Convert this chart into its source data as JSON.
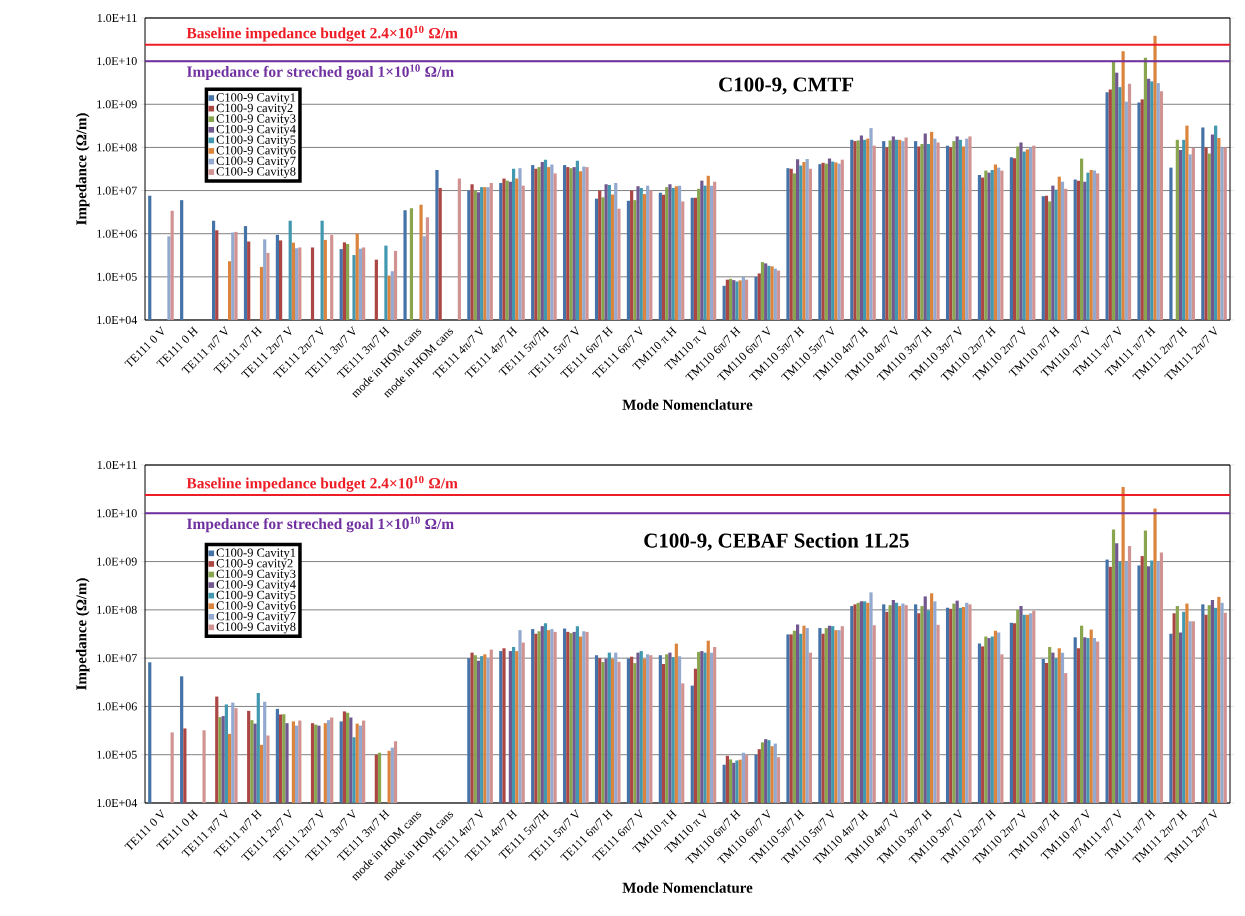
{
  "chart_data": [
    {
      "type": "bar",
      "title": "C100-9, CMTF",
      "xlabel": "Mode Nomenclature",
      "ylabel": "Impedance (Ω/m)",
      "log": true,
      "grid": "y",
      "legend": "top left",
      "categories": [
        "TE111 0 V",
        "TE111 0 H",
        "TE111 π/7 V",
        "TE111 π/7 H",
        "TE111 2π/7 V",
        "TE111 2π/7 V",
        "TE111 3π/7 V",
        "TE111 3π/7 H",
        "mode in HOM cans",
        "mode in HOM cans",
        "TE111 4π/7 V",
        "TE111 4π/7 H",
        "TE111 5π/7H",
        "TE111 5π/7 V",
        "TE111 6π/7 H",
        "TE111 6π/7 V",
        "TM110 π H",
        "TM110 π V",
        "TM110 6π/7 H",
        "TM110 6π/7 V",
        "TM110 5π/7 H",
        "TM110 5π/7 V",
        "TM110 4π/7 H",
        "TM110 4π/7 V",
        "TM110 3π/7 H",
        "TM110 3π/7 V",
        "TM110 2π/7 H",
        "TM110 2π/7 V",
        "TM110 π/7 H",
        "TM110 π/7 V",
        "TM111 π/7 V",
        "TM111 π/7 H",
        "TM111 2π/7 H",
        "TM111 2π/7 V"
      ],
      "ylim": [
        10000,
        100000000000
      ],
      "yticks": [
        {
          "value": 10000,
          "label": "1.0E+04"
        },
        {
          "value": 100000,
          "label": "1.0E+05"
        },
        {
          "value": 1000000,
          "label": "1.0E+06"
        },
        {
          "value": 10000000,
          "label": "1.0E+07"
        },
        {
          "value": 100000000,
          "label": "1.0E+08"
        },
        {
          "value": 1000000000,
          "label": "1.0E+09"
        },
        {
          "value": 10000000000,
          "label": "1.0E+10"
        },
        {
          "value": 100000000000,
          "label": "1.0E+11"
        }
      ],
      "ref_lines": [
        {
          "axis": "y",
          "value": 24000000000,
          "label": "Baseline impedance budget 2.4×10$^{10}$ Ω/m",
          "color": "#ee1c25"
        },
        {
          "axis": "y",
          "value": 10000000000,
          "label": "Impedance for streched goal 1×10$^{10}$ Ω/m",
          "color": "#7030a0"
        }
      ],
      "series": [
        {
          "name": "C100-9 Cavity1",
          "color": "#4572a7",
          "values": [
            7600000.0,
            6000000.0,
            2000000.0,
            1500000.0,
            940000.0,
            null,
            440000.0,
            null,
            3500000.0,
            30000000.0,
            10000000.0,
            15000000.0,
            39000000.0,
            39000000.0,
            6500000.0,
            5800000.0,
            8900000.0,
            6800000.0,
            62000.0,
            100000.0,
            33000000.0,
            41000000.0,
            150000000.0,
            140000000.0,
            140000000.0,
            110000000.0,
            23000000.0,
            59000000.0,
            7400000.0,
            18000000.0,
            1900000000.0,
            1100000000.0,
            34000000.0,
            290000000.0
          ]
        },
        {
          "name": "C100-9 cavity2",
          "color": "#aa4643",
          "values": [
            null,
            null,
            1200000.0,
            660000.0,
            700000.0,
            480000.0,
            630000.0,
            250000.0,
            null,
            11500000.0,
            14000000.0,
            19000000.0,
            32000000.0,
            35000000.0,
            10000000.0,
            10000000.0,
            8000000.0,
            6800000.0,
            86000.0,
            120000.0,
            32000000.0,
            44000000.0,
            140000000.0,
            100000000.0,
            105000000.0,
            100000000.0,
            20000000.0,
            56000000.0,
            7600000.0,
            17000000.0,
            2200000000.0,
            1300000000.0,
            null,
            100000000.0
          ]
        },
        {
          "name": "C100-9 Cavity3",
          "color": "#89a54e",
          "values": [
            null,
            null,
            null,
            null,
            null,
            null,
            580000.0,
            null,
            3900000.0,
            null,
            10000000.0,
            17000000.0,
            35000000.0,
            33000000.0,
            7000000.0,
            6000000.0,
            12000000.0,
            11000000.0,
            90000.0,
            220000.0,
            25000000.0,
            42000000.0,
            145000000.0,
            145000000.0,
            120000000.0,
            140000000.0,
            29000000.0,
            105000000.0,
            5600000.0,
            55000000.0,
            9700000000.0,
            12000000000.0,
            150000000.0,
            72000000.0
          ]
        },
        {
          "name": "C100-9 Cavity4",
          "color": "#71588f",
          "values": [
            null,
            null,
            null,
            null,
            null,
            null,
            null,
            null,
            null,
            null,
            9100000.0,
            16000000.0,
            46000000.0,
            35000000.0,
            14000000.0,
            12600000.0,
            14000000.0,
            17000000.0,
            84000.0,
            205000.0,
            53000000.0,
            55000000.0,
            190000000.0,
            180000000.0,
            210000000.0,
            180000000.0,
            26000000.0,
            130000000.0,
            13000000.0,
            16000000.0,
            5400000000.0,
            3900000000.0,
            87000000.0,
            200000000.0
          ]
        },
        {
          "name": "C100-9 Cavity5",
          "color": "#4198af",
          "values": [
            null,
            null,
            null,
            null,
            2000000.0,
            2000000.0,
            320000.0,
            530000.0,
            null,
            null,
            12000000.0,
            32000000.0,
            52000000.0,
            49000000.0,
            13500000.0,
            11500000.0,
            11500000.0,
            13000000.0,
            78000.0,
            180000.0,
            38000000.0,
            47000000.0,
            150000000.0,
            150000000.0,
            120000000.0,
            150000000.0,
            30000000.0,
            80000000.0,
            10500000.0,
            26000000.0,
            2500000000.0,
            3400000000.0,
            150000000.0,
            320000000.0
          ]
        },
        {
          "name": "C100-9 Cavity6",
          "color": "#db843d",
          "values": [
            null,
            null,
            230000.0,
            170000.0,
            620000.0,
            720000.0,
            1000000.0,
            107000.0,
            4700000.0,
            null,
            12000000.0,
            19000000.0,
            35000000.0,
            28000000.0,
            8100000.0,
            8300000.0,
            12600000.0,
            22000000.0,
            83000.0,
            175000.0,
            46000000.0,
            45000000.0,
            160000000.0,
            150000000.0,
            230000000.0,
            105000000.0,
            40000000.0,
            90000000.0,
            21000000.0,
            30000000.0,
            17000000000.0,
            39000000000.0,
            320000000.0,
            165000000.0
          ]
        },
        {
          "name": "C100-9 Cavity7",
          "color": "#93a9cf",
          "values": [
            870000.0,
            null,
            1070000.0,
            740000.0,
            460000.0,
            null,
            450000.0,
            135000.0,
            870000.0,
            null,
            12000000.0,
            33000000.0,
            40000000.0,
            36000000.0,
            15000000.0,
            13000000.0,
            13000000.0,
            13000000.0,
            100000.0,
            155000.0,
            54000000.0,
            42000000.0,
            280000000.0,
            140000000.0,
            160000000.0,
            160000000.0,
            34000000.0,
            100000000.0,
            16000000.0,
            29000000.0,
            1150000000.0,
            3100000000.0,
            69000000.0,
            100000000.0
          ]
        },
        {
          "name": "C100-9 Cavity8",
          "color": "#d19392",
          "values": [
            3400000.0,
            null,
            1100000.0,
            360000.0,
            480000.0,
            940000.0,
            480000.0,
            400000.0,
            2400000.0,
            19000000.0,
            15000000.0,
            13000000.0,
            25000000.0,
            35000000.0,
            3800000.0,
            10000000.0,
            5600000.0,
            16000000.0,
            86000.0,
            140000.0,
            32000000.0,
            52000000.0,
            110000000.0,
            170000000.0,
            130000000.0,
            180000000.0,
            29000000.0,
            110000000.0,
            11000000.0,
            25000000.0,
            3000000000.0,
            2000000000.0,
            98000000.0,
            100000000.0
          ]
        }
      ]
    },
    {
      "type": "bar",
      "title": "C100-9, CEBAF Section 1L25",
      "xlabel": "Mode Nomenclature",
      "ylabel": "Impedance (Ω/m)",
      "log": true,
      "grid": "y",
      "legend": "top left",
      "categories": [
        "TE111 0 V",
        "TE111 0 H",
        "TE111 π/7 V",
        "TE111 π/7 H",
        "TE111 2π/7 V",
        "TE111 2π/7 V",
        "TE111 3π/7 V",
        "TE111 3π/7 H",
        "mode in HOM cans",
        "mode in HOM cans",
        "TE111 4π/7 V",
        "TE111 4π/7 H",
        "TE111 5π/7H",
        "TE111 5π/7 V",
        "TE111 6π/7 H",
        "TE111 6π/7 V",
        "TM110 π H",
        "TM110 π V",
        "TM110 6π/7 H",
        "TM110 6π/7 V",
        "TM110 5π/7 H",
        "TM110 5π/7 V",
        "TM110 4π/7 H",
        "TM110 4π/7 V",
        "TM110 3π/7 H",
        "TM110 3π/7 V",
        "TM110 2π/7 H",
        "TM110 2π/7 V",
        "TM110 π/7 H",
        "TM110 π/7 V",
        "TM111 π/7 V",
        "TM111 π/7 H",
        "TM111 2π/7 H",
        "TM111 2π/7 V"
      ],
      "ylim": [
        10000,
        100000000000
      ],
      "yticks": [
        {
          "value": 10000,
          "label": "1.0E+04"
        },
        {
          "value": 100000,
          "label": "1.0E+05"
        },
        {
          "value": 1000000,
          "label": "1.0E+06"
        },
        {
          "value": 10000000,
          "label": "1.0E+07"
        },
        {
          "value": 100000000,
          "label": "1.0E+08"
        },
        {
          "value": 1000000000,
          "label": "1.0E+09"
        },
        {
          "value": 10000000000,
          "label": "1.0E+10"
        },
        {
          "value": 100000000000,
          "label": "1.0E+11"
        }
      ],
      "ref_lines": [
        {
          "axis": "y",
          "value": 24000000000,
          "label": "Baseline impedance budget 2.4×10$^{10}$ Ω/m",
          "color": "#ee1c25"
        },
        {
          "axis": "y",
          "value": 10000000000,
          "label": "Impedance for streched goal 1×10$^{10}$ Ω/m",
          "color": "#7030a0"
        }
      ],
      "series": [
        {
          "name": "C100-9 Cavity1",
          "color": "#4572a7",
          "values": [
            8200000.0,
            4200000.0,
            null,
            null,
            890000.0,
            null,
            490000.0,
            null,
            null,
            null,
            10000000.0,
            14000000.0,
            40000000.0,
            41000000.0,
            11500000.0,
            9800000.0,
            11500000.0,
            2700000.0,
            62000.0,
            100000.0,
            31000000.0,
            42000000.0,
            120000000.0,
            130000000.0,
            130000000.0,
            110000000.0,
            20000000.0,
            54000000.0,
            9600000.0,
            27000000.0,
            1100000000.0,
            830000000.0,
            32000000.0,
            130000000.0
          ]
        },
        {
          "name": "C100-9 cavity2",
          "color": "#aa4643",
          "values": [
            null,
            350000.0,
            1600000.0,
            810000.0,
            680000.0,
            450000.0,
            790000.0,
            100000.0,
            null,
            null,
            13000000.0,
            16000000.0,
            32000000.0,
            35000000.0,
            10000000.0,
            10700000.0,
            7600000.0,
            6000000.0,
            95000.0,
            130000.0,
            31000000.0,
            32000000.0,
            130000000.0,
            91000000.0,
            85000000.0,
            105000000.0,
            17500000.0,
            53000000.0,
            7900000.0,
            16000000.0,
            780000000.0,
            1300000000.0,
            85000000.0,
            79000000.0
          ]
        },
        {
          "name": "C100-9 Cavity3",
          "color": "#89a54e",
          "values": [
            null,
            null,
            600000.0,
            520000.0,
            690000.0,
            420000.0,
            740000.0,
            110000.0,
            null,
            null,
            11500000.0,
            null,
            36000000.0,
            33000000.0,
            8300000.0,
            7900000.0,
            12000000.0,
            13500000.0,
            80000.0,
            180000.0,
            37000000.0,
            42000000.0,
            140000000.0,
            125000000.0,
            120000000.0,
            135000000.0,
            28000000.0,
            100000000.0,
            17000000.0,
            47000000.0,
            4600000000.0,
            4400000000.0,
            120000000.0,
            125000000.0
          ]
        },
        {
          "name": "C100-9 Cavity4",
          "color": "#71588f",
          "values": [
            null,
            null,
            630000.0,
            440000.0,
            450000.0,
            400000.0,
            590000.0,
            null,
            null,
            null,
            8800000.0,
            14000000.0,
            46000000.0,
            35000000.0,
            9800000.0,
            13000000.0,
            13000000.0,
            14000000.0,
            68000.0,
            210000.0,
            50000000.0,
            47000000.0,
            150000000.0,
            160000000.0,
            190000000.0,
            155000000.0,
            26000000.0,
            120000000.0,
            13000000.0,
            27000000.0,
            2400000000.0,
            800000000.0,
            34000000.0,
            160000000.0
          ]
        },
        {
          "name": "C100-9 Cavity5",
          "color": "#4198af",
          "values": [
            null,
            null,
            1100000.0,
            1900000.0,
            null,
            null,
            230000.0,
            null,
            null,
            null,
            11000000.0,
            17000000.0,
            53000000.0,
            46000000.0,
            13000000.0,
            14000000.0,
            10500000.0,
            13000000.0,
            76000.0,
            200000.0,
            32000000.0,
            46000000.0,
            150000000.0,
            140000000.0,
            98000000.0,
            110000000.0,
            28000000.0,
            79000000.0,
            10000000.0,
            26000000.0,
            1000000000.0,
            1050000000.0,
            91000000.0,
            110000000.0
          ]
        },
        {
          "name": "C100-9 Cavity6",
          "color": "#db843d",
          "values": [
            null,
            null,
            270000.0,
            160000.0,
            490000.0,
            450000.0,
            440000.0,
            120000.0,
            null,
            null,
            12000000.0,
            14000000.0,
            38000000.0,
            28000000.0,
            9600000.0,
            9600000.0,
            20000000.0,
            23000000.0,
            79000.0,
            150000.0,
            47000000.0,
            38000000.0,
            140000000.0,
            120000000.0,
            220000000.0,
            115000000.0,
            37000000.0,
            79000000.0,
            16000000.0,
            39000000.0,
            35000000000.0,
            12600000000.0,
            135000000.0,
            185000000.0
          ]
        },
        {
          "name": "C100-9 Cavity7",
          "color": "#93a9cf",
          "values": [
            null,
            null,
            1200000.0,
            1250000.0,
            400000.0,
            520000.0,
            400000.0,
            140000.0,
            null,
            null,
            10000000.0,
            38000000.0,
            40000000.0,
            36000000.0,
            13000000.0,
            12000000.0,
            11000000.0,
            13000000.0,
            110000.0,
            170000.0,
            42000000.0,
            38000000.0,
            230000000.0,
            135000000.0,
            150000000.0,
            140000000.0,
            34000000.0,
            85000000.0,
            13000000.0,
            26000000.0,
            1000000000.0,
            1000000000.0,
            58000000.0,
            140000000.0
          ]
        },
        {
          "name": "C100-9 Cavity8",
          "color": "#d19392",
          "values": [
            290000.0,
            320000.0,
            920000.0,
            250000.0,
            510000.0,
            590000.0,
            510000.0,
            190000.0,
            null,
            null,
            15000000.0,
            21000000.0,
            35000000.0,
            35000000.0,
            8400000.0,
            11500000.0,
            3000000.0,
            17000000.0,
            98000.0,
            89000.0,
            13000000.0,
            46000000.0,
            48000000.0,
            125000000.0,
            49000000.0,
            130000000.0,
            12000000.0,
            96000000.0,
            4900000.0,
            22000000.0,
            2100000000.0,
            1550000000.0,
            58000000.0,
            87000000.0
          ]
        }
      ]
    }
  ]
}
